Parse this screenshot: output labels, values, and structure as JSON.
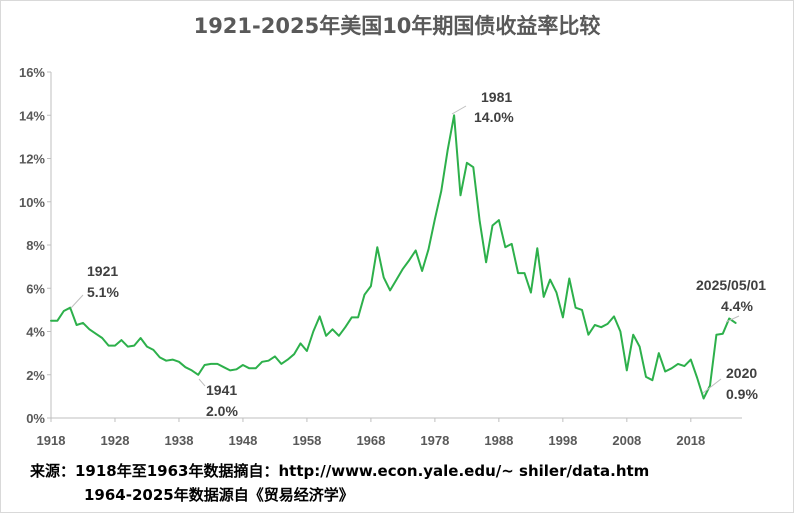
{
  "chart_data": {
    "type": "line",
    "title": "1921-2025年美国10年期国债收益率比较",
    "xlabel": "",
    "ylabel": "",
    "xlim": [
      1918,
      2026
    ],
    "ylim": [
      0,
      16
    ],
    "y_ticks": [
      "0%",
      "2%",
      "4%",
      "6%",
      "8%",
      "10%",
      "12%",
      "14%",
      "16%"
    ],
    "x_ticks": [
      "1918",
      "1928",
      "1938",
      "1948",
      "1958",
      "1968",
      "1978",
      "1988",
      "1998",
      "2008",
      "2018"
    ],
    "grid": false,
    "line_color": "#2db04b",
    "series": [
      {
        "x": [
          1918,
          1919,
          1920,
          1921,
          1922,
          1923,
          1924,
          1925,
          1926,
          1927,
          1928,
          1929,
          1930,
          1931,
          1932,
          1933,
          1934,
          1935,
          1936,
          1937,
          1938,
          1939,
          1940,
          1941,
          1942,
          1943,
          1944,
          1945,
          1946,
          1947,
          1948,
          1949,
          1950,
          1951,
          1952,
          1953,
          1954,
          1955,
          1956,
          1957,
          1958,
          1959,
          1960,
          1961,
          1962,
          1963,
          1964,
          1965,
          1966,
          1967,
          1968,
          1969,
          1970,
          1971,
          1972,
          1973,
          1974,
          1975,
          1976,
          1977,
          1978,
          1979,
          1980,
          1981,
          1982,
          1983,
          1984,
          1985,
          1986,
          1987,
          1988,
          1989,
          1990,
          1991,
          1992,
          1993,
          1994,
          1995,
          1996,
          1997,
          1998,
          1999,
          2000,
          2001,
          2002,
          2003,
          2004,
          2005,
          2006,
          2007,
          2008,
          2009,
          2010,
          2011,
          2012,
          2013,
          2014,
          2015,
          2016,
          2017,
          2018,
          2019,
          2020,
          2021,
          2022,
          2023,
          2024,
          2025
        ],
        "values": [
          4.5,
          4.5,
          4.95,
          5.1,
          4.3,
          4.4,
          4.1,
          3.9,
          3.7,
          3.35,
          3.35,
          3.6,
          3.3,
          3.35,
          3.7,
          3.3,
          3.15,
          2.8,
          2.65,
          2.7,
          2.6,
          2.35,
          2.2,
          2.0,
          2.45,
          2.5,
          2.5,
          2.35,
          2.2,
          2.25,
          2.45,
          2.3,
          2.3,
          2.6,
          2.65,
          2.85,
          2.5,
          2.7,
          2.95,
          3.45,
          3.1,
          4.0,
          4.7,
          3.8,
          4.1,
          3.8,
          4.2,
          4.65,
          4.65,
          5.7,
          6.1,
          7.9,
          6.5,
          5.9,
          6.4,
          6.9,
          7.3,
          7.75,
          6.8,
          7.8,
          9.2,
          10.5,
          12.4,
          14.0,
          10.3,
          11.8,
          11.6,
          9.1,
          7.2,
          8.9,
          9.15,
          7.9,
          8.05,
          6.7,
          6.7,
          5.8,
          7.85,
          5.6,
          6.4,
          5.8,
          4.65,
          6.45,
          5.1,
          5.0,
          3.85,
          4.3,
          4.2,
          4.35,
          4.7,
          4.0,
          2.2,
          3.85,
          3.3,
          1.9,
          1.75,
          3.0,
          2.15,
          2.3,
          2.5,
          2.4,
          2.7,
          1.85,
          0.9,
          1.5,
          3.85,
          3.9,
          4.6,
          4.4
        ]
      }
    ],
    "annotations": [
      {
        "l1": "1921",
        "l2": "5.1%"
      },
      {
        "l1": "1941",
        "l2": "2.0%"
      },
      {
        "l1": "1981",
        "l2": "14.0%"
      },
      {
        "l1": "2020",
        "l2": "0.9%"
      },
      {
        "l1": "2025/05/01",
        "l2": "4.4%"
      }
    ]
  },
  "source": {
    "line1": "来源：1918年至1963年数据摘自：http://www.econ.yale.edu/~ shiler/data.htm",
    "line2": "1964-2025年数据源自《贸易经济学》"
  }
}
